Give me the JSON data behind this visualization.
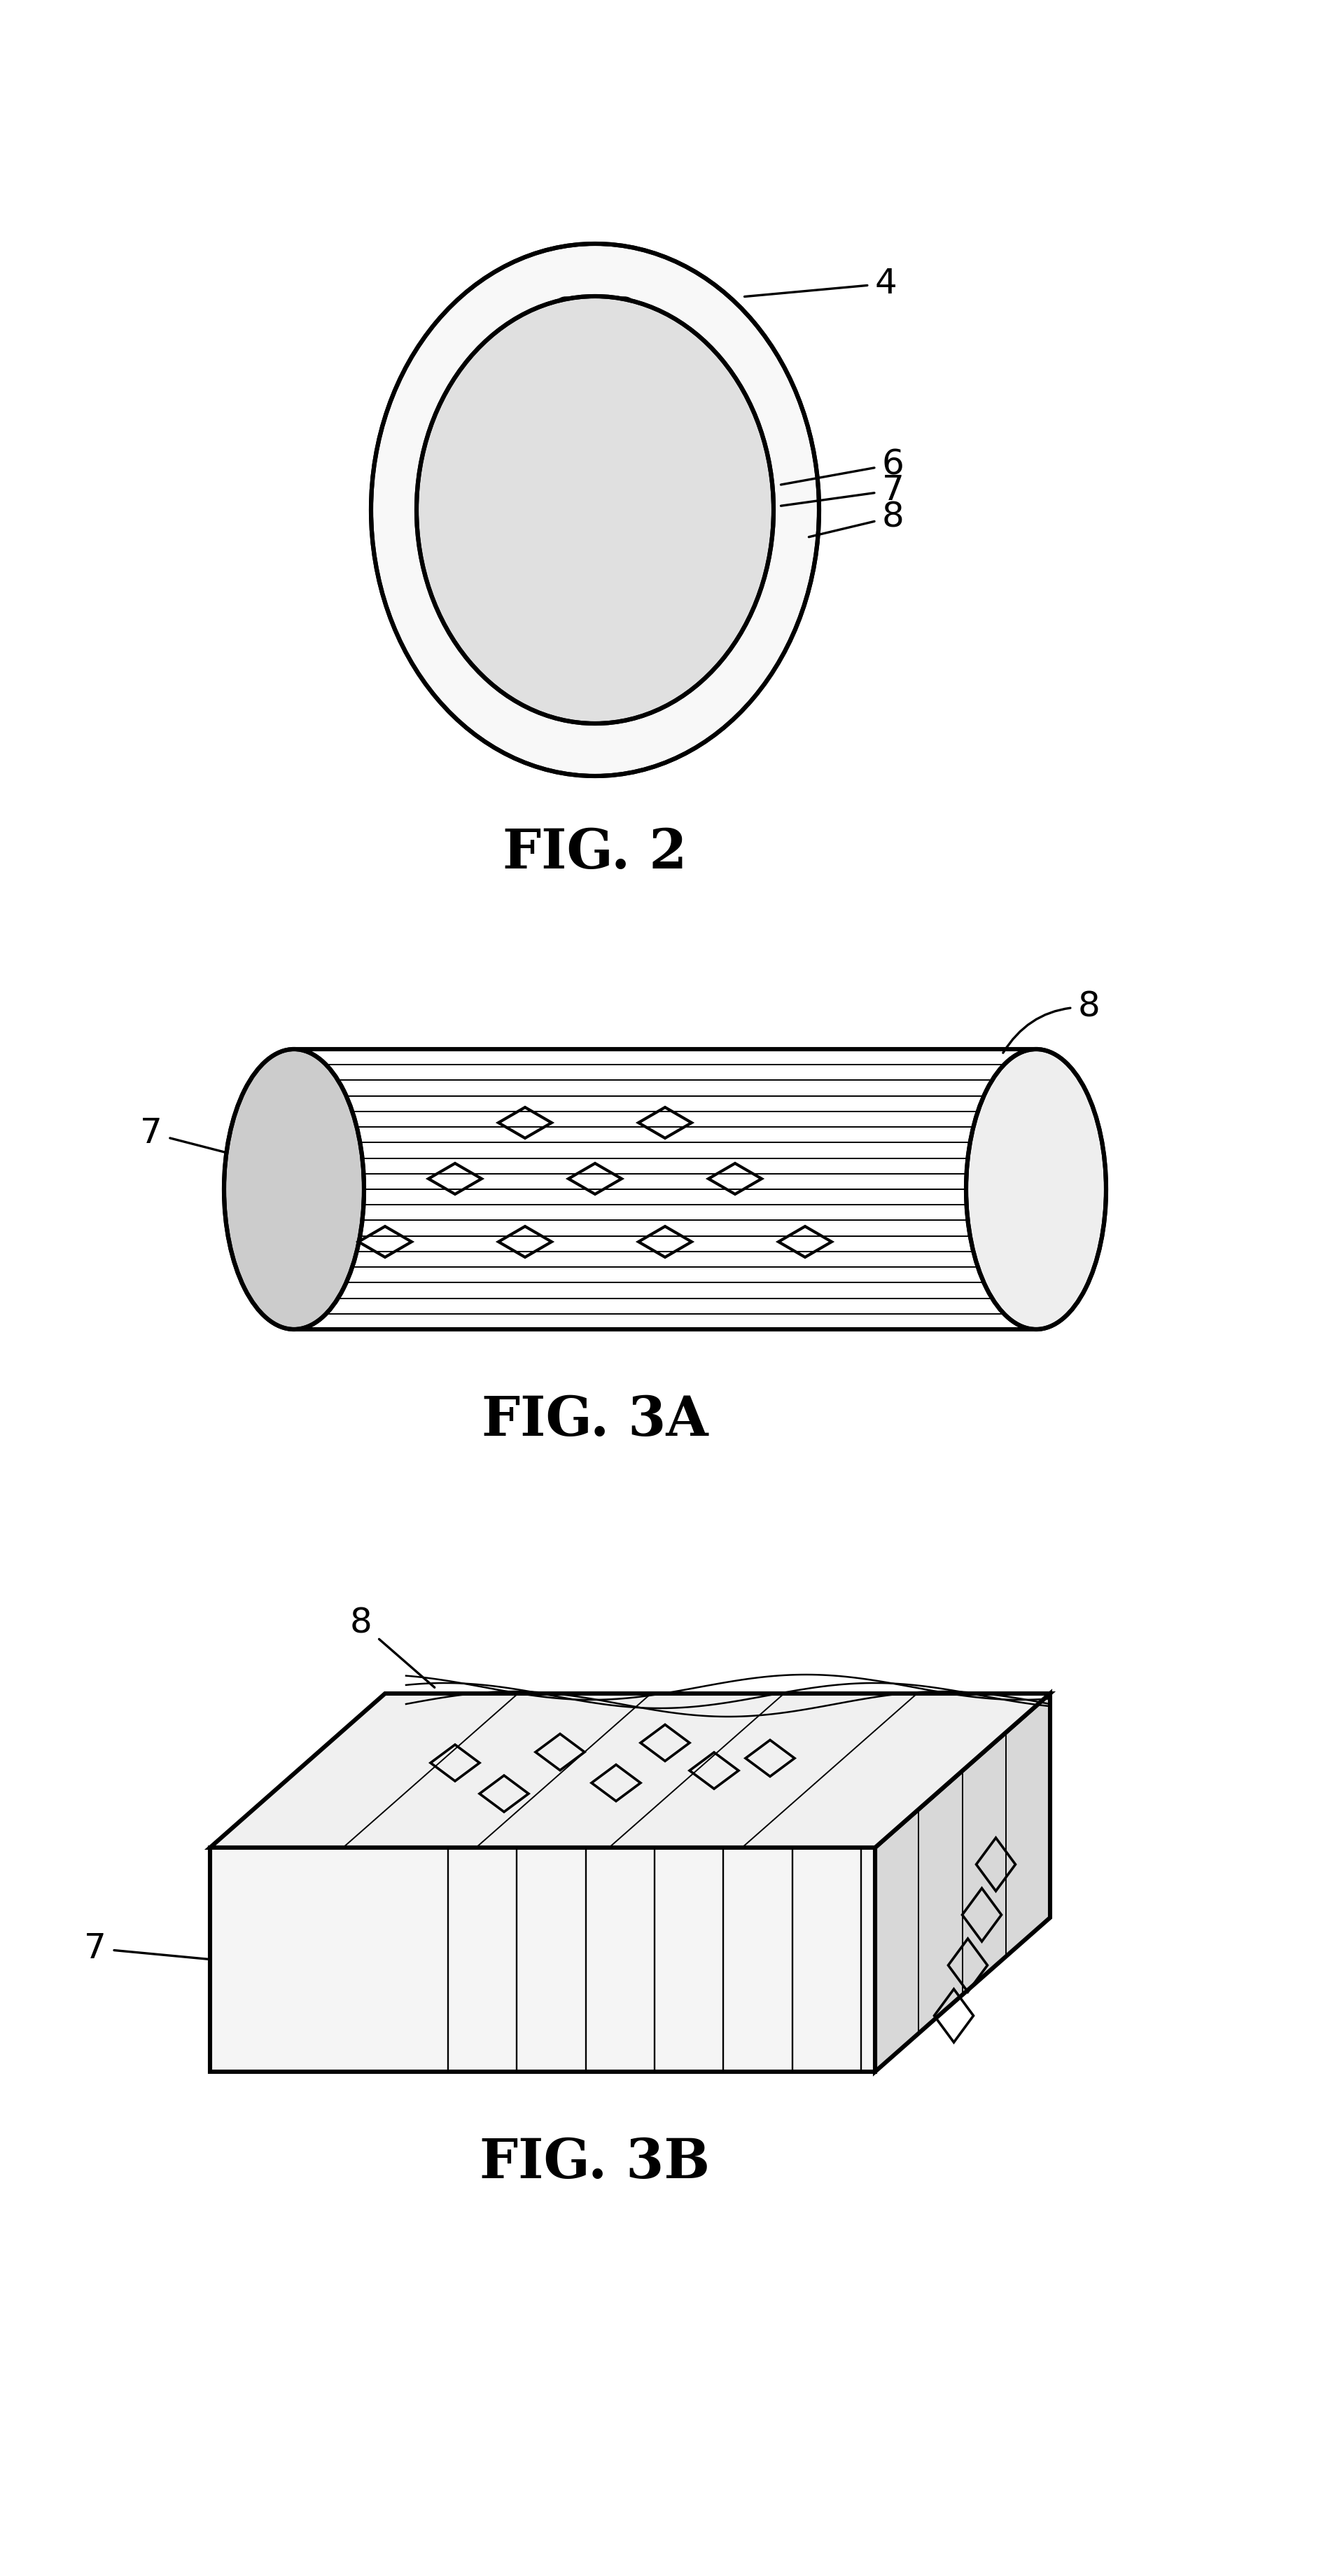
{
  "bg_color": "#ffffff",
  "line_color": "#000000",
  "fig2_label": "FIG. 2",
  "fig3a_label": "FIG. 3A",
  "fig3b_label": "FIG. 3B"
}
